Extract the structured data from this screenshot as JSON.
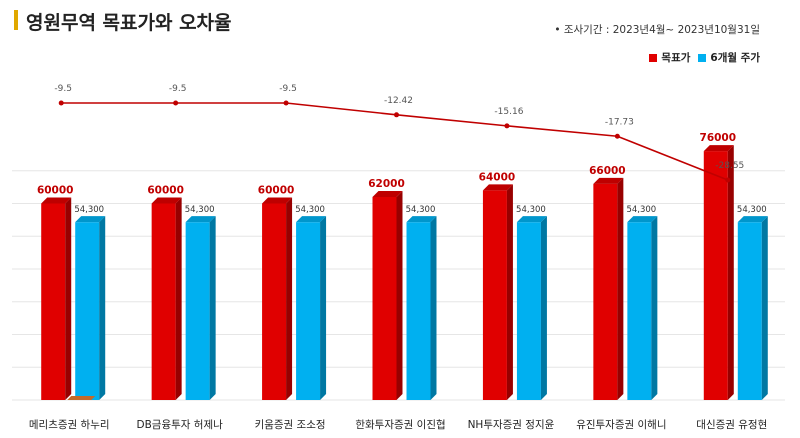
{
  "header": {
    "title": "영원무역 목표가와 오차율",
    "period": "• 조사기간 : 2023년4월~ 2023년10월31일"
  },
  "legend": {
    "target": "목표가",
    "price": "6개월 주가"
  },
  "colors": {
    "target": "#e00000",
    "price": "#00b0f0",
    "line": "#c00000"
  },
  "chart_data": {
    "type": "bar",
    "categories": [
      "메리츠증권 하누리",
      "DB금융투자 허제나",
      "키움증권 조소정",
      "한화투자증권 이진협",
      "NH투자증권 정지윤",
      "유진투자증권 이해니",
      "대신증권 유정현"
    ],
    "series": [
      {
        "name": "목표가",
        "values": [
          60000,
          60000,
          60000,
          62000,
          64000,
          66000,
          76000
        ],
        "labels": [
          "60000",
          "60000",
          "60000",
          "62000",
          "64000",
          "66000",
          "76000"
        ]
      },
      {
        "name": "6개월 주가",
        "values": [
          54300,
          54300,
          54300,
          54300,
          54300,
          54300,
          54300
        ],
        "labels": [
          "54,300",
          "54,300",
          "54,300",
          "54,300",
          "54,300",
          "54,300",
          "54,300"
        ]
      }
    ],
    "error_rate": {
      "type": "line",
      "values": [
        -9.5,
        -9.5,
        -9.5,
        -12.42,
        -15.16,
        -17.73,
        -28.55
      ],
      "labels": [
        "-9.5",
        "-9.5",
        "-9.5",
        "-12.42",
        "-15.16",
        "-17.73",
        "-28.55"
      ]
    },
    "ylim": [
      0,
      80000
    ]
  }
}
